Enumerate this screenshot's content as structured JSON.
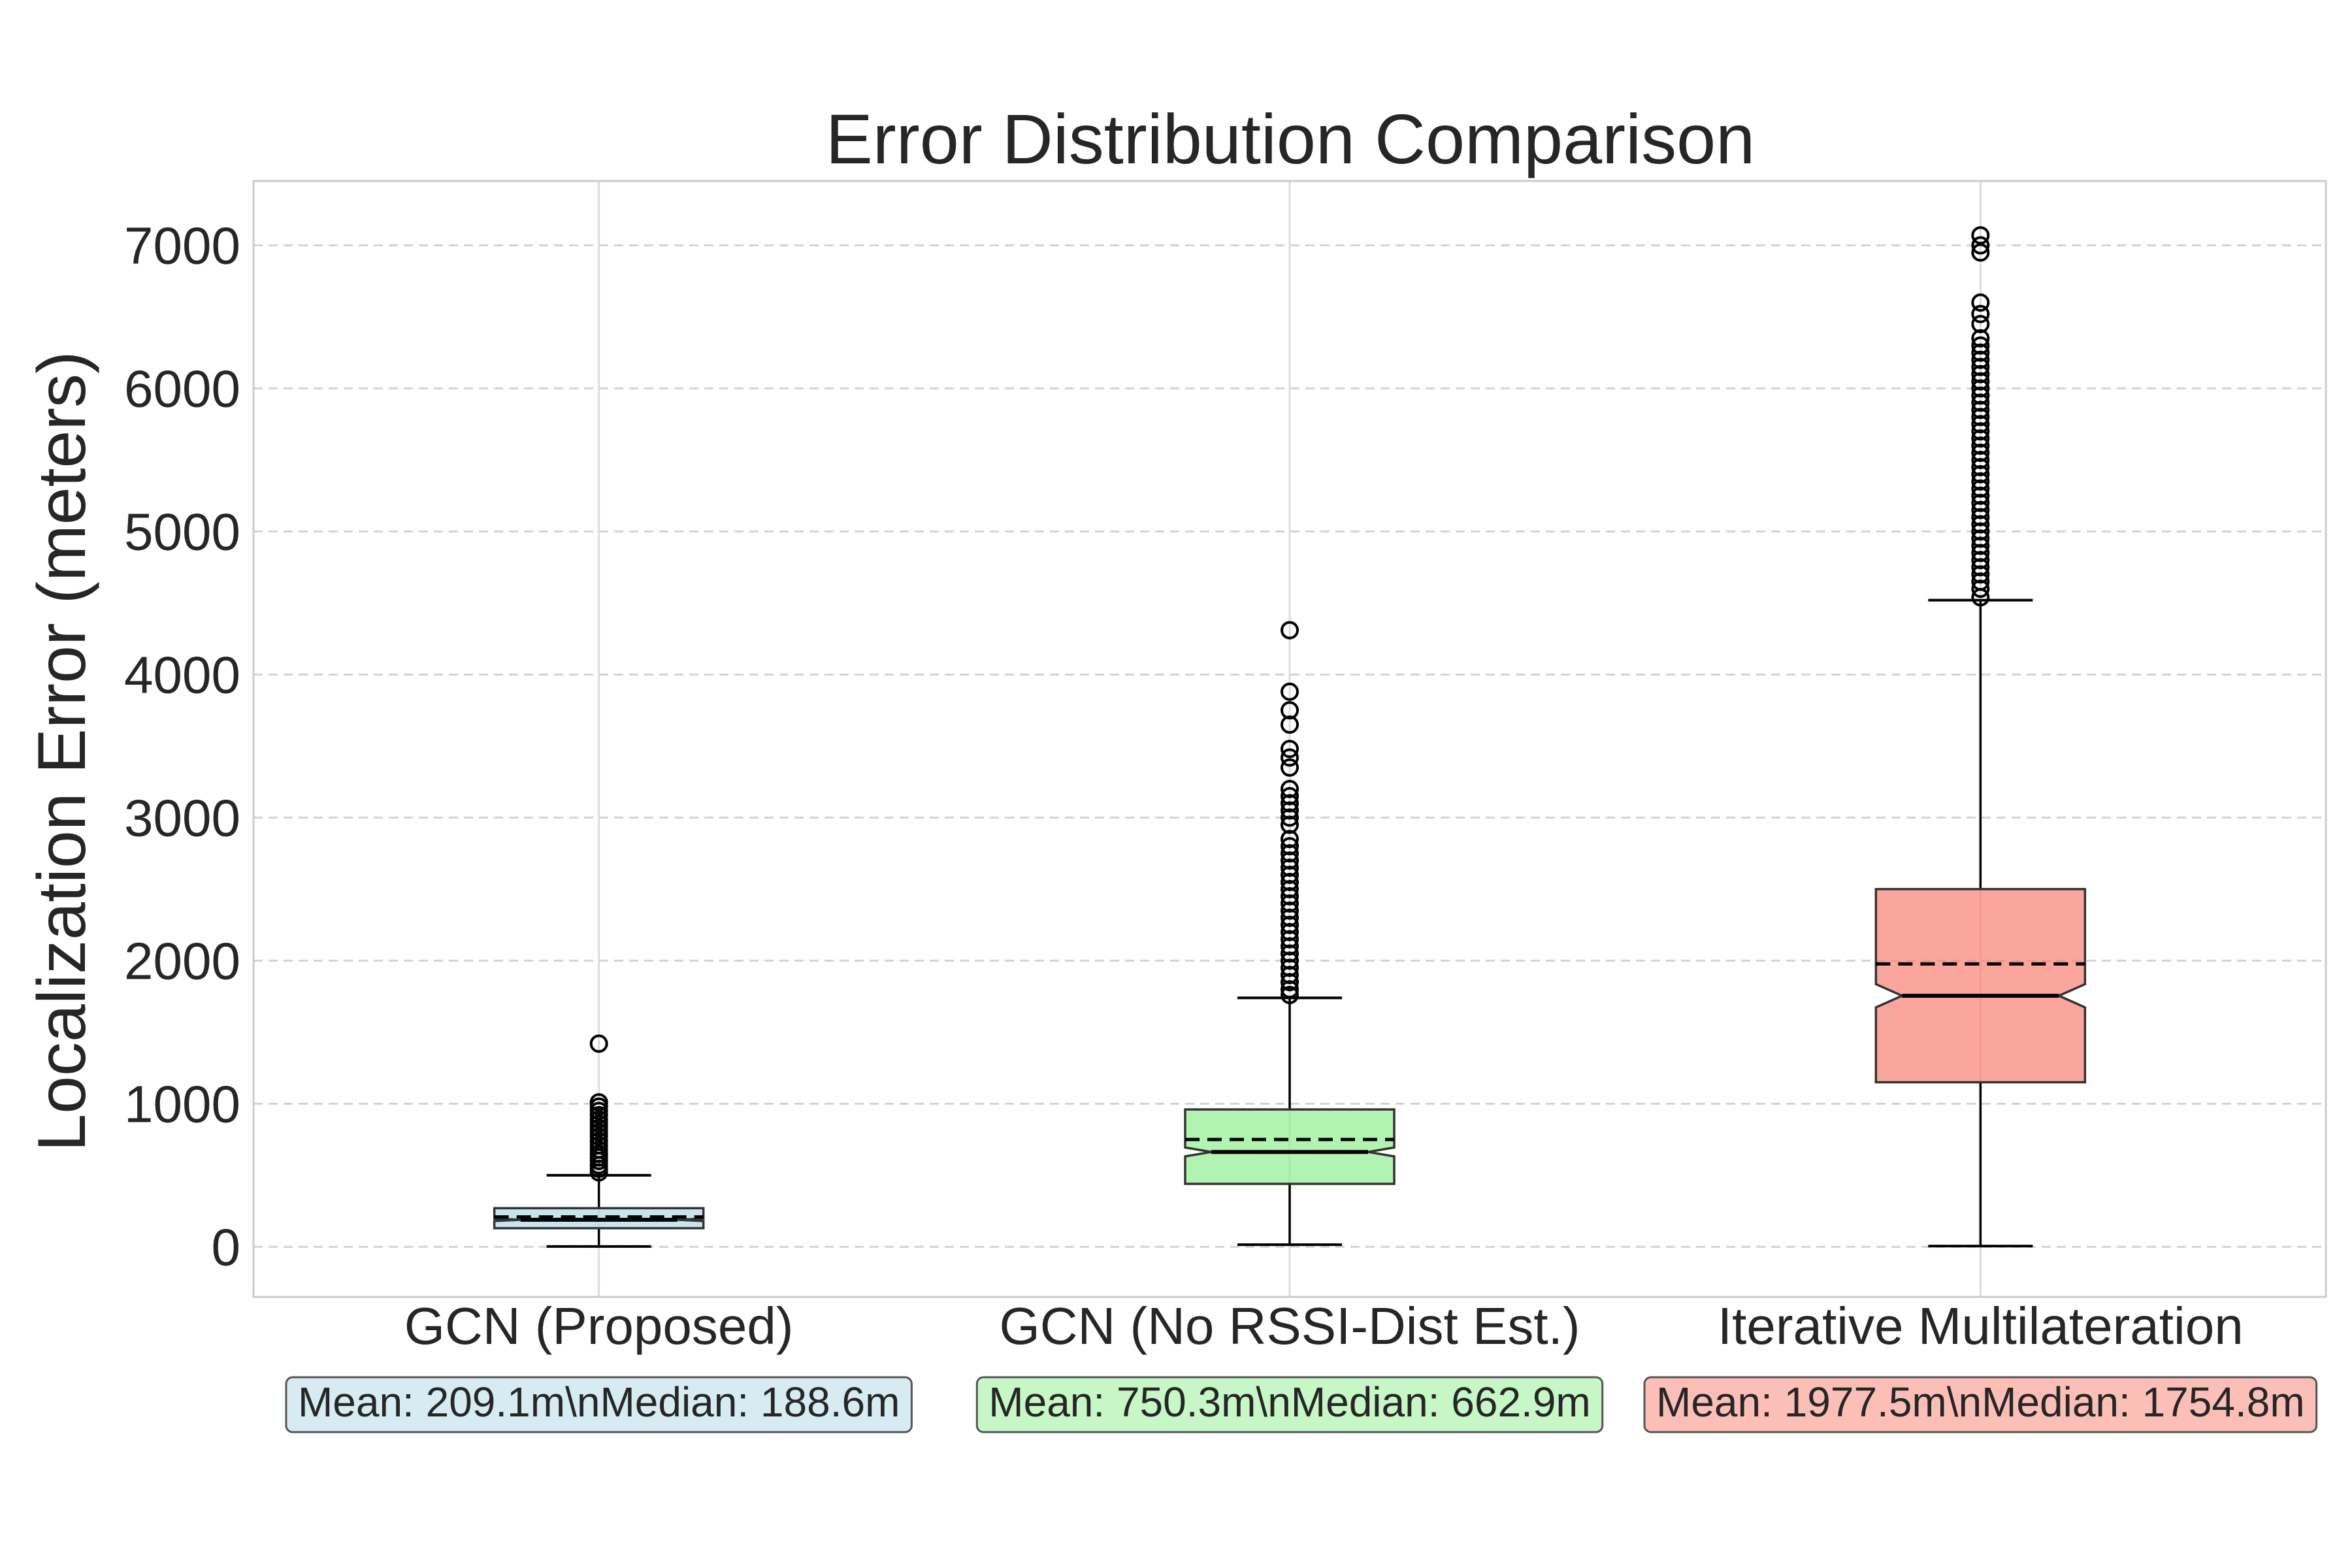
{
  "chart_data": {
    "type": "box",
    "title": "Error Distribution Comparison",
    "xlabel": "",
    "ylabel": "Localization Error (meters)",
    "ylim": [
      -350,
      7450
    ],
    "yticks": [
      0,
      1000,
      2000,
      3000,
      4000,
      5000,
      6000,
      7000
    ],
    "grid": true,
    "categories": [
      "GCN (Proposed)",
      "GCN (No RSSI-Dist Est.)",
      "Iterative Multilateration"
    ],
    "series": [
      {
        "category": "GCN (Proposed)",
        "color": "#add8e6",
        "stat_label": "Mean: 209.1m\\nMedian: 188.6m",
        "mean": 209.1,
        "median": 188.6,
        "q1": 130,
        "q3": 270,
        "whisker_low": 2,
        "whisker_high": 500,
        "outliers": [
          520,
          545,
          570,
          600,
          625,
          650,
          680,
          710,
          740,
          770,
          800,
          830,
          860,
          890,
          920,
          950,
          980,
          1010,
          1420
        ]
      },
      {
        "category": "GCN (No RSSI-Dist Est.)",
        "color": "#90ee90",
        "stat_label": "Mean: 750.3m\\nMedian: 662.9m",
        "mean": 750.3,
        "median": 662.9,
        "q1": 440,
        "q3": 960,
        "whisker_low": 15,
        "whisker_high": 1740,
        "outliers": [
          1760,
          1800,
          1850,
          1900,
          1950,
          2000,
          2050,
          2100,
          2150,
          2200,
          2250,
          2300,
          2350,
          2400,
          2450,
          2500,
          2550,
          2600,
          2650,
          2700,
          2750,
          2800,
          2850,
          2950,
          3000,
          3050,
          3100,
          3150,
          3200,
          3350,
          3420,
          3480,
          3650,
          3750,
          3880,
          4310
        ]
      },
      {
        "category": "Iterative Multilateration",
        "color": "#fa8072",
        "stat_label": "Mean: 1977.5m\\nMedian: 1754.8m",
        "mean": 1977.5,
        "median": 1754.8,
        "q1": 1150,
        "q3": 2500,
        "whisker_low": 5,
        "whisker_high": 4520,
        "outliers": [
          4540,
          4600,
          4650,
          4700,
          4750,
          4800,
          4850,
          4900,
          4950,
          5000,
          5050,
          5100,
          5150,
          5200,
          5250,
          5300,
          5350,
          5400,
          5450,
          5500,
          5550,
          5600,
          5650,
          5700,
          5750,
          5800,
          5850,
          5900,
          5950,
          6000,
          6050,
          6100,
          6150,
          6200,
          6250,
          6300,
          6350,
          6450,
          6520,
          6600,
          6950,
          7000,
          7070
        ]
      }
    ]
  }
}
